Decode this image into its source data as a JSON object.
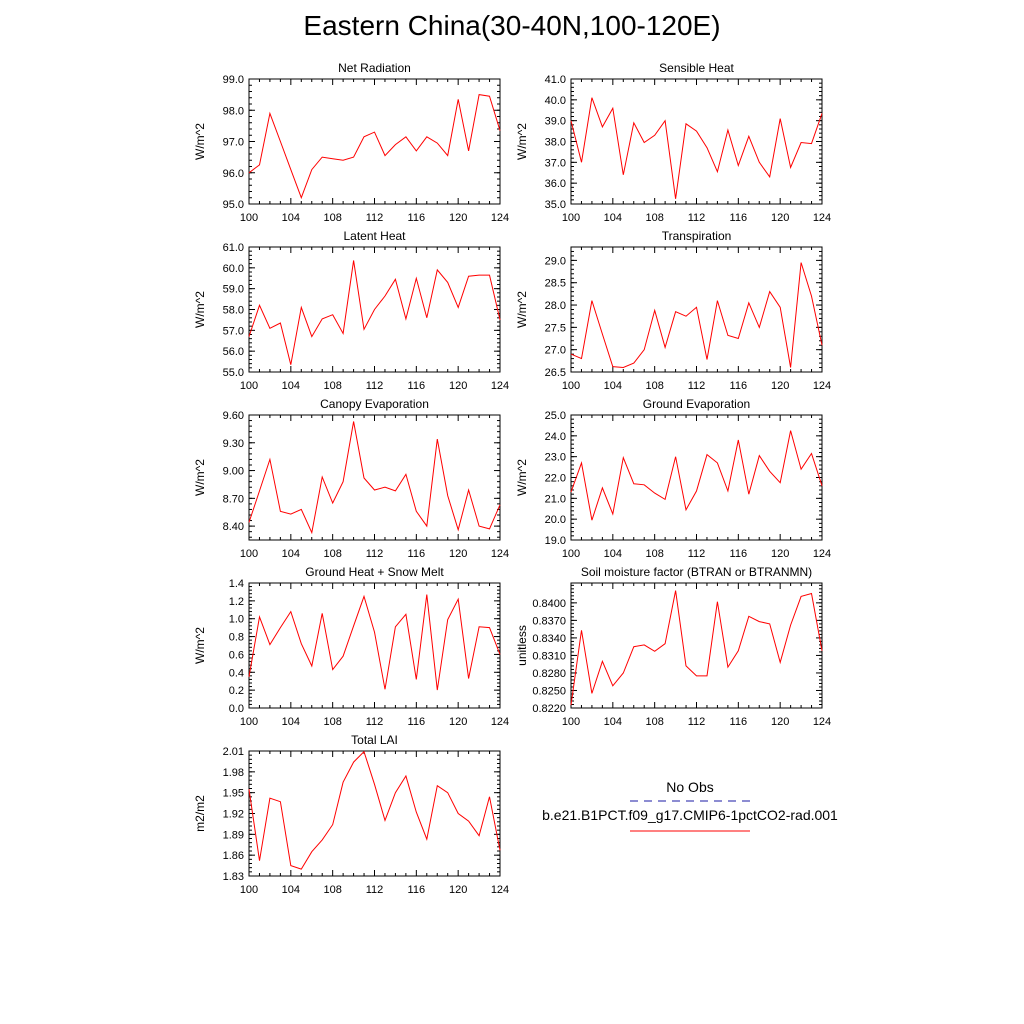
{
  "title": "Eastern China(30-40N,100-120E)",
  "legend": {
    "obs_label": "No Obs",
    "obs_color": "#1a1aa6",
    "case_label": "b.e21.B1PCT.f09_g17.CMIP6-1pctCO2-rad.001",
    "case_color": "#ff0000"
  },
  "chart_data": [
    {
      "type": "line",
      "title": "Net Radiation",
      "ylabel": "W/m^2",
      "xlim": [
        100,
        124
      ],
      "ylim": [
        95.0,
        99.0
      ],
      "yticks": [
        "95.0",
        "96.0",
        "97.0",
        "98.0",
        "99.0"
      ],
      "xticks": [
        "100",
        "104",
        "108",
        "112",
        "116",
        "120",
        "124"
      ],
      "series": [
        {
          "color": "#ff0000",
          "x": [
            100,
            101,
            102,
            103,
            104,
            105,
            106,
            107,
            108,
            109,
            110,
            111,
            112,
            113,
            114,
            115,
            116,
            117,
            118,
            119,
            120,
            121,
            122,
            123,
            124
          ],
          "y": [
            96.0,
            96.25,
            97.9,
            97.0,
            96.1,
            95.2,
            96.1,
            96.5,
            96.45,
            96.4,
            96.5,
            97.15,
            97.3,
            96.55,
            96.9,
            97.15,
            96.7,
            97.15,
            96.95,
            96.55,
            98.35,
            96.7,
            98.5,
            98.45,
            97.35
          ]
        }
      ]
    },
    {
      "type": "line",
      "title": "Sensible Heat",
      "ylabel": "W/m^2",
      "xlim": [
        100,
        124
      ],
      "ylim": [
        35.0,
        41.0
      ],
      "yticks": [
        "35.0",
        "36.0",
        "37.0",
        "38.0",
        "39.0",
        "40.0",
        "41.0"
      ],
      "xticks": [
        "100",
        "104",
        "108",
        "112",
        "116",
        "120",
        "124"
      ],
      "series": [
        {
          "color": "#ff0000",
          "x": [
            100,
            101,
            102,
            103,
            104,
            105,
            106,
            107,
            108,
            109,
            110,
            111,
            112,
            113,
            114,
            115,
            116,
            117,
            118,
            119,
            120,
            121,
            122,
            123,
            124
          ],
          "y": [
            39.0,
            37.0,
            40.1,
            38.7,
            39.6,
            36.4,
            38.9,
            37.95,
            38.3,
            39.0,
            35.25,
            38.85,
            38.5,
            37.7,
            36.55,
            38.55,
            36.85,
            38.25,
            37.0,
            36.3,
            39.1,
            36.75,
            37.95,
            37.9,
            39.35
          ]
        }
      ]
    },
    {
      "type": "line",
      "title": "Latent Heat",
      "ylabel": "W/m^2",
      "xlim": [
        100,
        124
      ],
      "ylim": [
        55.0,
        61.0
      ],
      "yticks": [
        "55.0",
        "56.0",
        "57.0",
        "58.0",
        "59.0",
        "60.0",
        "61.0"
      ],
      "xticks": [
        "100",
        "104",
        "108",
        "112",
        "116",
        "120",
        "124"
      ],
      "series": [
        {
          "color": "#ff0000",
          "x": [
            100,
            101,
            102,
            103,
            104,
            105,
            106,
            107,
            108,
            109,
            110,
            111,
            112,
            113,
            114,
            115,
            116,
            117,
            118,
            119,
            120,
            121,
            122,
            123,
            124
          ],
          "y": [
            56.7,
            58.2,
            57.1,
            57.35,
            55.35,
            58.1,
            56.7,
            57.55,
            57.75,
            56.85,
            60.35,
            57.05,
            58.0,
            58.65,
            59.45,
            57.55,
            59.5,
            57.6,
            59.9,
            59.3,
            58.1,
            59.6,
            59.65,
            59.65,
            57.5
          ]
        }
      ]
    },
    {
      "type": "line",
      "title": "Transpiration",
      "ylabel": "W/m^2",
      "xlim": [
        100,
        124
      ],
      "ylim": [
        26.5,
        29.3
      ],
      "yticks": [
        "26.5",
        "27.0",
        "27.5",
        "28.0",
        "28.5",
        "29.0"
      ],
      "xticks": [
        "100",
        "104",
        "108",
        "112",
        "116",
        "120",
        "124"
      ],
      "series": [
        {
          "color": "#ff0000",
          "x": [
            100,
            101,
            102,
            103,
            104,
            105,
            106,
            107,
            108,
            109,
            110,
            111,
            112,
            113,
            114,
            115,
            116,
            117,
            118,
            119,
            120,
            121,
            122,
            123,
            124
          ],
          "y": [
            26.9,
            26.8,
            28.1,
            27.35,
            26.62,
            26.6,
            26.7,
            27.0,
            27.88,
            27.05,
            27.85,
            27.75,
            27.95,
            26.78,
            28.1,
            27.32,
            27.25,
            28.05,
            27.5,
            28.3,
            27.95,
            26.6,
            28.95,
            28.2,
            27.1
          ]
        }
      ]
    },
    {
      "type": "line",
      "title": "Canopy Evaporation",
      "ylabel": "W/m^2",
      "xlim": [
        100,
        124
      ],
      "ylim": [
        8.25,
        9.6
      ],
      "yticks": [
        "8.40",
        "8.70",
        "9.00",
        "9.30",
        "9.60"
      ],
      "xticks": [
        "100",
        "104",
        "108",
        "112",
        "116",
        "120",
        "124"
      ],
      "series": [
        {
          "color": "#ff0000",
          "x": [
            100,
            101,
            102,
            103,
            104,
            105,
            106,
            107,
            108,
            109,
            110,
            111,
            112,
            113,
            114,
            115,
            116,
            117,
            118,
            119,
            120,
            121,
            122,
            123,
            124
          ],
          "y": [
            8.44,
            8.78,
            9.12,
            8.56,
            8.53,
            8.58,
            8.33,
            8.93,
            8.65,
            8.88,
            9.53,
            8.92,
            8.79,
            8.82,
            8.78,
            8.96,
            8.56,
            8.4,
            9.34,
            8.73,
            8.36,
            8.79,
            8.4,
            8.37,
            8.63
          ]
        }
      ]
    },
    {
      "type": "line",
      "title": "Ground Evaporation",
      "ylabel": "W/m^2",
      "xlim": [
        100,
        124
      ],
      "ylim": [
        19.0,
        25.0
      ],
      "yticks": [
        "19.0",
        "20.0",
        "21.0",
        "22.0",
        "23.0",
        "24.0",
        "25.0"
      ],
      "xticks": [
        "100",
        "104",
        "108",
        "112",
        "116",
        "120",
        "124"
      ],
      "series": [
        {
          "color": "#ff0000",
          "x": [
            100,
            101,
            102,
            103,
            104,
            105,
            106,
            107,
            108,
            109,
            110,
            111,
            112,
            113,
            114,
            115,
            116,
            117,
            118,
            119,
            120,
            121,
            122,
            123,
            124
          ],
          "y": [
            21.3,
            22.7,
            19.95,
            21.5,
            20.25,
            22.95,
            21.7,
            21.65,
            21.25,
            20.95,
            23.0,
            20.45,
            21.35,
            23.1,
            22.7,
            21.35,
            23.8,
            21.2,
            23.05,
            22.3,
            21.75,
            24.25,
            22.4,
            23.15,
            21.6
          ]
        }
      ]
    },
    {
      "type": "line",
      "title": "Ground Heat + Snow Melt",
      "ylabel": "W/m^2",
      "xlim": [
        100,
        124
      ],
      "ylim": [
        0.0,
        1.4
      ],
      "yticks": [
        "0.0",
        "0.2",
        "0.4",
        "0.6",
        "0.8",
        "1.0",
        "1.2",
        "1.4"
      ],
      "xticks": [
        "100",
        "104",
        "108",
        "112",
        "116",
        "120",
        "124"
      ],
      "series": [
        {
          "color": "#ff0000",
          "x": [
            100,
            101,
            102,
            103,
            104,
            105,
            106,
            107,
            108,
            109,
            110,
            111,
            112,
            113,
            114,
            115,
            116,
            117,
            118,
            119,
            120,
            121,
            122,
            123,
            124
          ],
          "y": [
            0.35,
            1.02,
            0.71,
            0.9,
            1.08,
            0.72,
            0.47,
            1.06,
            0.43,
            0.58,
            0.92,
            1.25,
            0.85,
            0.21,
            0.91,
            1.05,
            0.32,
            1.27,
            0.2,
            0.99,
            1.22,
            0.33,
            0.91,
            0.9,
            0.6
          ]
        }
      ]
    },
    {
      "type": "line",
      "title": "Soil moisture factor (BTRAN or BTRANMN)",
      "ylabel": "unitless",
      "xlim": [
        100,
        124
      ],
      "ylim": [
        0.822,
        0.8434
      ],
      "yticks": [
        "0.8220",
        "0.8250",
        "0.8280",
        "0.8310",
        "0.8340",
        "0.8370",
        "0.8400"
      ],
      "xticks": [
        "100",
        "104",
        "108",
        "112",
        "116",
        "120",
        "124"
      ],
      "series": [
        {
          "color": "#ff0000",
          "x": [
            100,
            101,
            102,
            103,
            104,
            105,
            106,
            107,
            108,
            109,
            110,
            111,
            112,
            113,
            114,
            115,
            116,
            117,
            118,
            119,
            120,
            121,
            122,
            123,
            124
          ],
          "y": [
            0.8225,
            0.8353,
            0.8245,
            0.83,
            0.8258,
            0.828,
            0.8325,
            0.8328,
            0.8317,
            0.833,
            0.8421,
            0.8292,
            0.8275,
            0.8275,
            0.8402,
            0.829,
            0.8318,
            0.8377,
            0.8368,
            0.8364,
            0.8298,
            0.8362,
            0.8411,
            0.8416,
            0.8318
          ]
        }
      ]
    },
    {
      "type": "line",
      "title": "Total LAI",
      "ylabel": "m2/m2",
      "xlim": [
        100,
        124
      ],
      "ylim": [
        1.83,
        2.01
      ],
      "yticks": [
        "1.83",
        "1.86",
        "1.89",
        "1.92",
        "1.95",
        "1.98",
        "2.01"
      ],
      "xticks": [
        "100",
        "104",
        "108",
        "112",
        "116",
        "120",
        "124"
      ],
      "series": [
        {
          "color": "#ff0000",
          "x": [
            100,
            101,
            102,
            103,
            104,
            105,
            106,
            107,
            108,
            109,
            110,
            111,
            112,
            113,
            114,
            115,
            116,
            117,
            118,
            119,
            120,
            121,
            122,
            123,
            124
          ],
          "y": [
            1.955,
            1.852,
            1.942,
            1.937,
            1.845,
            1.84,
            1.865,
            1.882,
            1.904,
            1.965,
            1.994,
            2.009,
            1.962,
            1.91,
            1.95,
            1.974,
            1.922,
            1.883,
            1.96,
            1.95,
            1.92,
            1.909,
            1.888,
            1.944,
            1.867
          ]
        }
      ]
    }
  ]
}
